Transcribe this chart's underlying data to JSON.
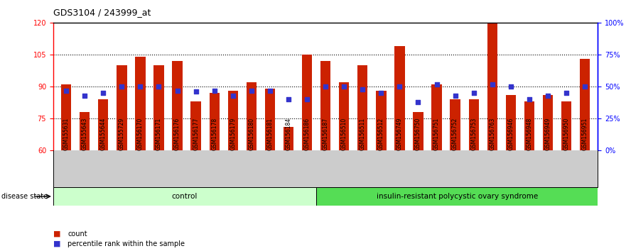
{
  "title": "GDS3104 / 243999_at",
  "samples": [
    "GSM155631",
    "GSM155643",
    "GSM155644",
    "GSM155729",
    "GSM156170",
    "GSM156171",
    "GSM156176",
    "GSM156177",
    "GSM156178",
    "GSM156179",
    "GSM156180",
    "GSM156181",
    "GSM156184",
    "GSM156186",
    "GSM156187",
    "GSM156510",
    "GSM156511",
    "GSM156512",
    "GSM156749",
    "GSM156750",
    "GSM156751",
    "GSM156752",
    "GSM156753",
    "GSM156763",
    "GSM156946",
    "GSM156948",
    "GSM156949",
    "GSM156950",
    "GSM156951"
  ],
  "bar_values": [
    91,
    78,
    84,
    100,
    104,
    100,
    102,
    83,
    87,
    88,
    92,
    89,
    71,
    105,
    102,
    92,
    100,
    88,
    109,
    78,
    91,
    84,
    84,
    120,
    86,
    83,
    86,
    83,
    103
  ],
  "percentile_values": [
    47,
    43,
    45,
    50,
    50,
    50,
    47,
    46,
    47,
    43,
    47,
    47,
    40,
    40,
    50,
    50,
    48,
    45,
    50,
    38,
    52,
    43,
    45,
    52,
    50,
    40,
    43,
    45,
    50
  ],
  "control_count": 14,
  "bar_color": "#cc2200",
  "dot_color": "#3333cc",
  "ylim_left": [
    60,
    120
  ],
  "ylim_right": [
    0,
    100
  ],
  "yticks_left": [
    60,
    75,
    90,
    105,
    120
  ],
  "yticks_right": [
    0,
    25,
    50,
    75,
    100
  ],
  "ytick_labels_right": [
    "0%",
    "25%",
    "50%",
    "75%",
    "100%"
  ],
  "hlines": [
    75,
    90,
    105
  ],
  "group_labels": [
    "control",
    "insulin-resistant polycystic ovary syndrome"
  ],
  "disease_state_label": "disease state",
  "legend_count_label": "count",
  "legend_percentile_label": "percentile rank within the sample",
  "control_bg": "#ccffcc",
  "disease_bg": "#55dd55",
  "tick_area_bg": "#cccccc",
  "bar_width": 0.55
}
